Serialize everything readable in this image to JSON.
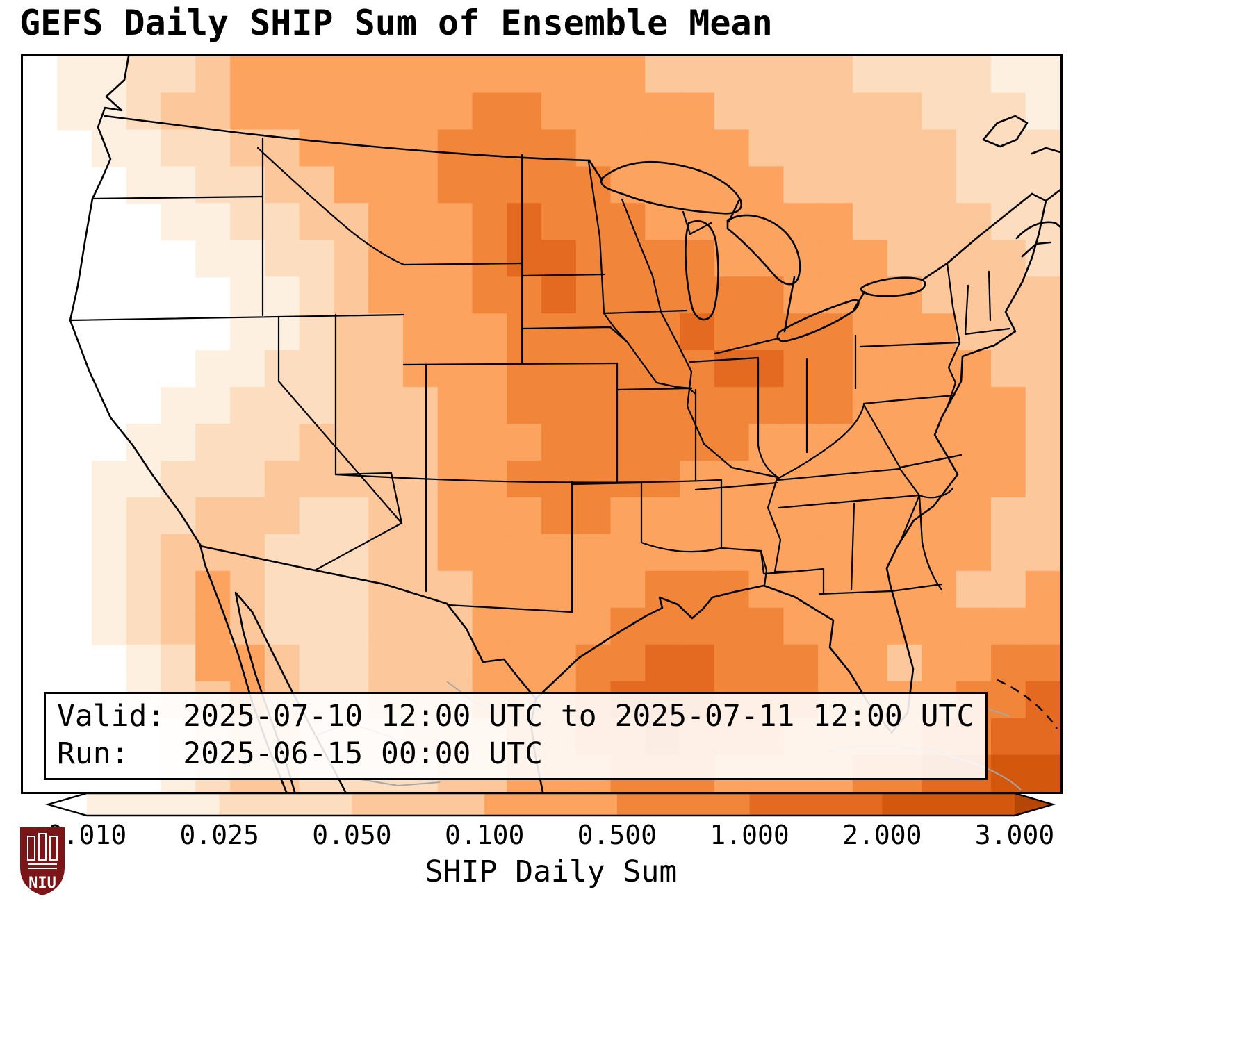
{
  "title": "GEFS Daily SHIP Sum of Ensemble Mean",
  "info_box": {
    "line1": "Valid: 2025-07-10 12:00 UTC to 2025-07-11 12:00 UTC",
    "line2": "Run:   2025-06-15 00:00 UTC"
  },
  "colorbar": {
    "label": "SHIP Daily Sum",
    "ticks": [
      "0.010",
      "0.025",
      "0.050",
      "0.100",
      "0.500",
      "1.000",
      "2.000",
      "3.000"
    ],
    "under_color": "#ffffff",
    "over_color": "#b54607",
    "segment_colors": [
      "#fef0e1",
      "#fdddc0",
      "#fdc79c",
      "#fba35f",
      "#f1863b",
      "#e36a20",
      "#d3570d"
    ]
  },
  "logo": {
    "text": "NIU",
    "shield_color": "#7a1518"
  },
  "chart_data": {
    "type": "heatmap",
    "title": "GEFS Daily SHIP Sum of Ensemble Mean",
    "region": "CONUS",
    "colorbar_label": "SHIP Daily Sum",
    "levels": [
      0.01,
      0.025,
      0.05,
      0.1,
      0.5,
      1.0,
      2.0,
      3.0
    ],
    "palette": [
      "#ffffff",
      "#fef0e1",
      "#fdddc0",
      "#fdc79c",
      "#fba35f",
      "#f1863b",
      "#e36a20",
      "#d3570d"
    ],
    "legend_position": "bottom",
    "grid_cols": 30,
    "grid_rows": 20,
    "grid": [
      "011223444444444444333333222211",
      "011233444444455444443333332221",
      "001122334444555544444333333222",
      "000112233444555554444433333222",
      "000011223344456555444444333322",
      "000001122344456655554444433332",
      "000000112344455655555544443333",
      "000000112334445555565555444333",
      "000001122334445555556655444433",
      "000011222333445555555555444443",
      "000112223333444555555444444443",
      "001122233333445555544444444443",
      "001223332233444554444444444433",
      "001233322233444444444444444433",
      "001234322233344444555444444334",
      "001234322233344445555544444444",
      "000124432233344455665554434455",
      "000123432233344456665554444556",
      "000012332223334455655544445566",
      "000012332222334445554444556677"
    ]
  }
}
